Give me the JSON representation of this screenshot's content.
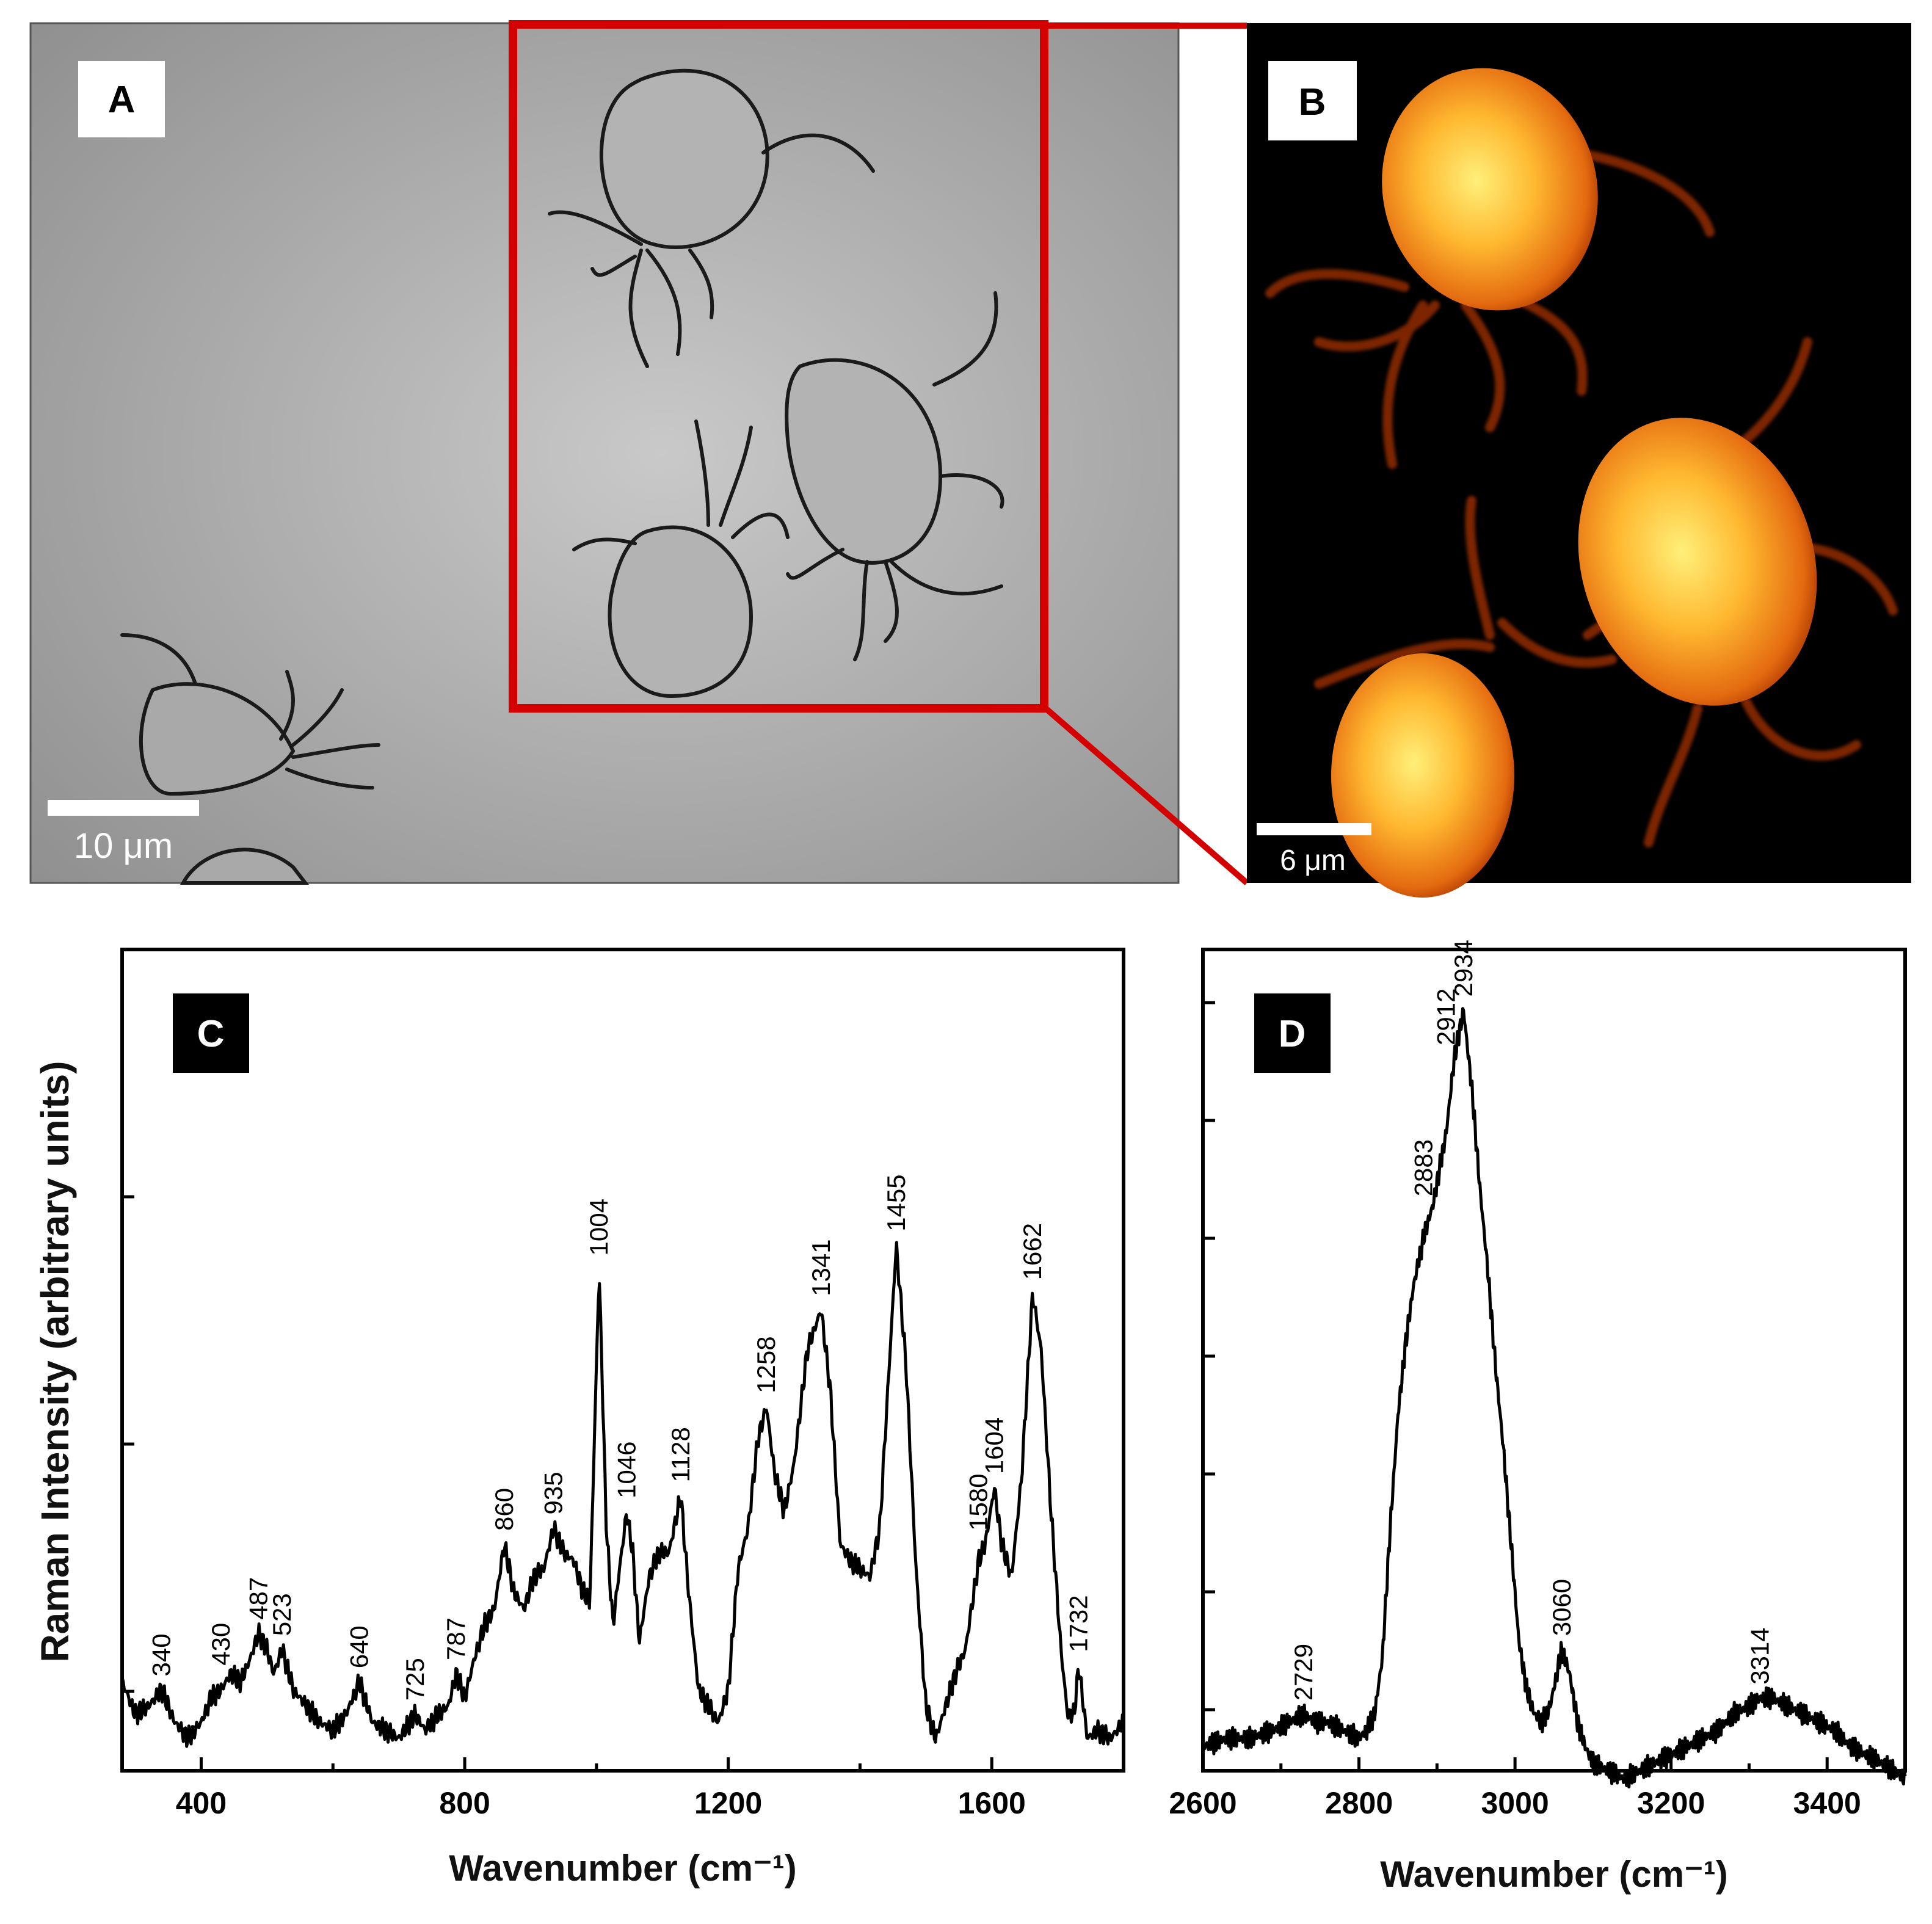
{
  "panels": {
    "a": {
      "letter": "A",
      "scale_bar": "10 μm"
    },
    "b": {
      "letter": "B",
      "scale_bar": "6 μm"
    },
    "c": {
      "letter": "C"
    },
    "d": {
      "letter": "D"
    }
  },
  "colors": {
    "inset_box": "#d40000",
    "spectrum": "#000000",
    "brightfield_bg": "#b4b4b4",
    "fluorescence_bg": "#000000",
    "fluorescence_hot": "#ffd24a"
  },
  "chart_data": [
    {
      "type": "line",
      "panel": "C",
      "xlabel": "Wavenumber (cm⁻¹)",
      "ylabel": "Raman Intensity (arbitrary units)",
      "xlim": [
        280,
        1800
      ],
      "ylim": [
        0,
        1.0
      ],
      "xticks": [
        400,
        800,
        1200,
        1600
      ],
      "yticks_labeled": false,
      "grid": false,
      "series": [
        {
          "x": [
            280,
            300,
            320,
            340,
            360,
            380,
            400,
            415,
            430,
            445,
            460,
            475,
            487,
            500,
            510,
            523,
            540,
            560,
            580,
            600,
            620,
            640,
            660,
            680,
            700,
            725,
            740,
            760,
            775,
            787,
            800,
            815,
            830,
            845,
            860,
            875,
            890,
            905,
            920,
            935,
            950,
            965,
            980,
            990,
            1004,
            1015,
            1025,
            1035,
            1046,
            1055,
            1065,
            1080,
            1095,
            1110,
            1128,
            1140,
            1155,
            1170,
            1185,
            1200,
            1215,
            1230,
            1245,
            1258,
            1270,
            1285,
            1300,
            1320,
            1341,
            1355,
            1370,
            1385,
            1400,
            1415,
            1430,
            1455,
            1470,
            1485,
            1500,
            1515,
            1530,
            1545,
            1560,
            1580,
            1590,
            1604,
            1615,
            1630,
            1645,
            1662,
            1675,
            1690,
            1705,
            1715,
            1725,
            1732,
            1745,
            1760,
            1780,
            1800
          ],
          "y": [
            0.11,
            0.07,
            0.08,
            0.1,
            0.06,
            0.04,
            0.06,
            0.09,
            0.1,
            0.12,
            0.11,
            0.14,
            0.17,
            0.15,
            0.12,
            0.15,
            0.1,
            0.08,
            0.06,
            0.05,
            0.07,
            0.11,
            0.06,
            0.05,
            0.04,
            0.07,
            0.05,
            0.07,
            0.08,
            0.12,
            0.09,
            0.14,
            0.18,
            0.2,
            0.28,
            0.22,
            0.2,
            0.24,
            0.25,
            0.3,
            0.27,
            0.26,
            0.22,
            0.21,
            0.62,
            0.3,
            0.18,
            0.25,
            0.32,
            0.27,
            0.16,
            0.24,
            0.27,
            0.27,
            0.34,
            0.22,
            0.1,
            0.08,
            0.06,
            0.1,
            0.25,
            0.3,
            0.41,
            0.45,
            0.37,
            0.32,
            0.38,
            0.52,
            0.57,
            0.47,
            0.28,
            0.26,
            0.25,
            0.24,
            0.3,
            0.65,
            0.5,
            0.25,
            0.08,
            0.04,
            0.08,
            0.12,
            0.15,
            0.26,
            0.28,
            0.35,
            0.28,
            0.24,
            0.36,
            0.59,
            0.52,
            0.32,
            0.15,
            0.07,
            0.07,
            0.13,
            0.04,
            0.05,
            0.04,
            0.06
          ]
        }
      ],
      "peak_labels": [
        "340",
        "430",
        "487",
        "523",
        "640",
        "725",
        "787",
        "860",
        "935",
        "1004",
        "1046",
        "1128",
        "1258",
        "1341",
        "1455",
        "1580",
        "1604",
        "1662",
        "1732"
      ]
    },
    {
      "type": "line",
      "panel": "D",
      "xlabel": "Wavenumber (cm⁻¹)",
      "ylabel": "",
      "xlim": [
        2600,
        3500
      ],
      "ylim": [
        0,
        1.0
      ],
      "xticks": [
        2600,
        2800,
        3000,
        3200,
        3400
      ],
      "yticks_labeled": false,
      "grid": false,
      "series": [
        {
          "x": [
            2600,
            2630,
            2660,
            2690,
            2710,
            2729,
            2745,
            2760,
            2780,
            2800,
            2810,
            2820,
            2830,
            2840,
            2850,
            2860,
            2870,
            2883,
            2895,
            2912,
            2922,
            2934,
            2945,
            2955,
            2965,
            2975,
            2985,
            2995,
            3005,
            3015,
            3025,
            3035,
            3045,
            3060,
            3070,
            3080,
            3090,
            3100,
            3120,
            3140,
            3160,
            3180,
            3200,
            3220,
            3240,
            3260,
            3280,
            3300,
            3314,
            3330,
            3350,
            3370,
            3390,
            3410,
            3430,
            3450,
            3470,
            3500
          ],
          "y": [
            0.03,
            0.04,
            0.04,
            0.05,
            0.06,
            0.07,
            0.06,
            0.06,
            0.05,
            0.04,
            0.05,
            0.07,
            0.14,
            0.3,
            0.44,
            0.53,
            0.6,
            0.66,
            0.7,
            0.79,
            0.88,
            0.94,
            0.84,
            0.72,
            0.62,
            0.5,
            0.4,
            0.28,
            0.16,
            0.1,
            0.07,
            0.06,
            0.08,
            0.15,
            0.12,
            0.06,
            0.03,
            0.01,
            0.0,
            -0.01,
            0.0,
            0.01,
            0.02,
            0.03,
            0.04,
            0.05,
            0.07,
            0.08,
            0.09,
            0.09,
            0.08,
            0.07,
            0.06,
            0.05,
            0.03,
            0.02,
            0.01,
            -0.01
          ]
        }
      ],
      "peak_labels": [
        "2729",
        "2883",
        "2912",
        "2934",
        "3060",
        "3314"
      ]
    }
  ]
}
